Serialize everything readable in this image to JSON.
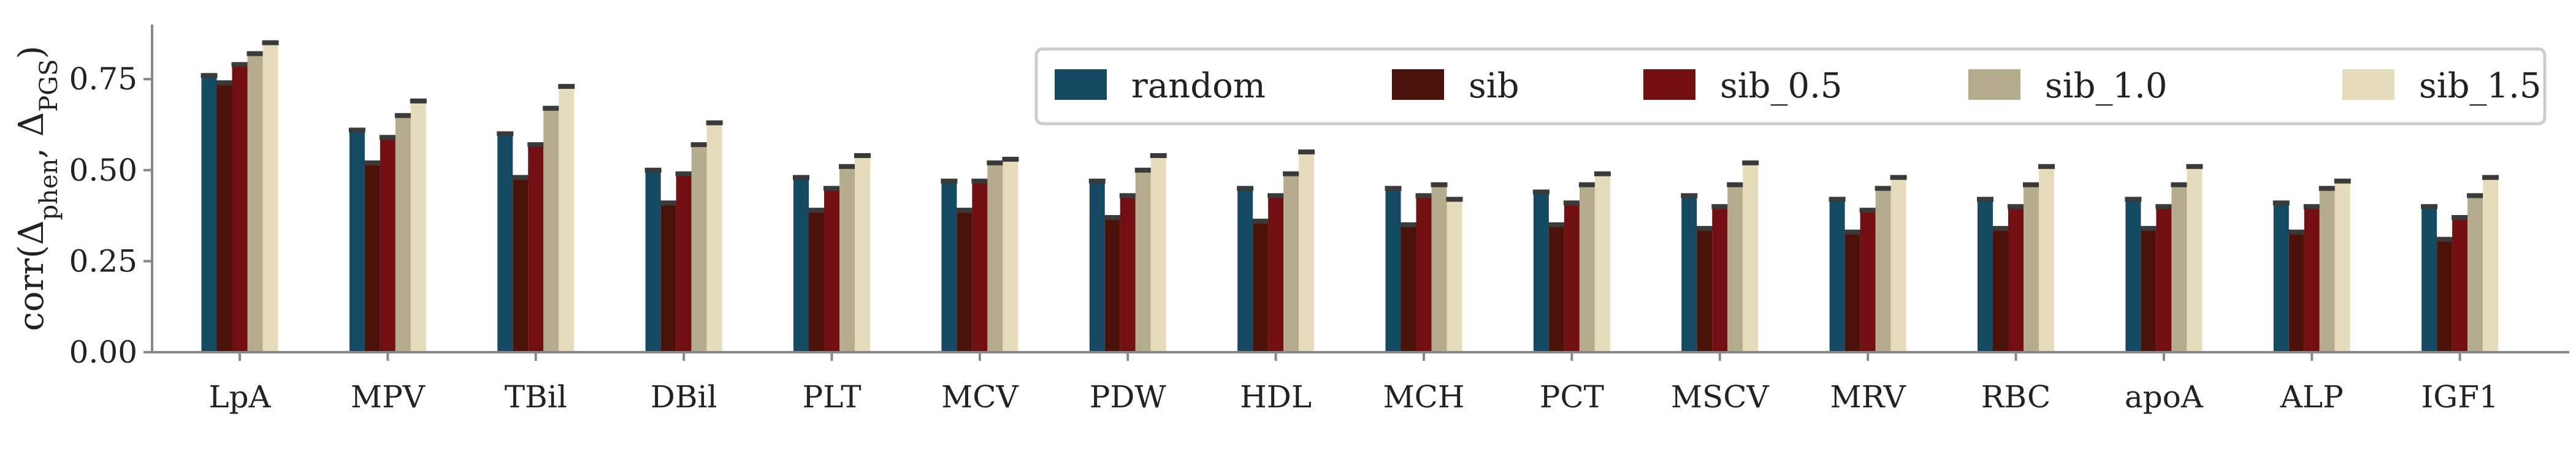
{
  "chart_data": {
    "type": "bar",
    "title": "",
    "xlabel": "",
    "ylabel": "corr(Δphen, ΔPGS)",
    "ylabel_parts": {
      "prefix": "corr(Δ",
      "sub1": "phen",
      "mid": ", Δ",
      "sub2": "PGS",
      "suffix": ")"
    },
    "ylim": [
      0,
      0.9
    ],
    "yticks": [
      0.0,
      0.25,
      0.5,
      0.75
    ],
    "ytick_labels": [
      "0.00",
      "0.25",
      "0.50",
      "0.75"
    ],
    "categories": [
      "LpA",
      "MPV",
      "TBil",
      "DBil",
      "PLT",
      "MCV",
      "PDW",
      "HDL",
      "MCH",
      "PCT",
      "MSCV",
      "MRV",
      "RBC",
      "apoA",
      "ALP",
      "IGF1"
    ],
    "legend_position": "top-right",
    "series": [
      {
        "name": "random",
        "color": "#154a63",
        "values": [
          0.76,
          0.61,
          0.6,
          0.5,
          0.48,
          0.47,
          0.47,
          0.45,
          0.45,
          0.44,
          0.43,
          0.42,
          0.42,
          0.42,
          0.41,
          0.4
        ]
      },
      {
        "name": "sib",
        "color": "#4a1208",
        "values": [
          0.74,
          0.52,
          0.48,
          0.41,
          0.39,
          0.39,
          0.37,
          0.36,
          0.35,
          0.35,
          0.34,
          0.33,
          0.34,
          0.34,
          0.33,
          0.31
        ]
      },
      {
        "name": "sib_0.5",
        "color": "#720f12",
        "values": [
          0.79,
          0.59,
          0.57,
          0.49,
          0.45,
          0.47,
          0.43,
          0.43,
          0.43,
          0.41,
          0.4,
          0.39,
          0.4,
          0.4,
          0.4,
          0.37
        ]
      },
      {
        "name": "sib_1.0",
        "color": "#b5ac8e",
        "values": [
          0.82,
          0.65,
          0.67,
          0.57,
          0.51,
          0.52,
          0.5,
          0.49,
          0.46,
          0.46,
          0.46,
          0.45,
          0.46,
          0.46,
          0.45,
          0.43
        ]
      },
      {
        "name": "sib_1.5",
        "color": "#e6dcbc",
        "values": [
          0.85,
          0.69,
          0.73,
          0.63,
          0.54,
          0.53,
          0.54,
          0.55,
          0.42,
          0.49,
          0.52,
          0.48,
          0.51,
          0.51,
          0.47,
          0.48
        ]
      }
    ]
  }
}
